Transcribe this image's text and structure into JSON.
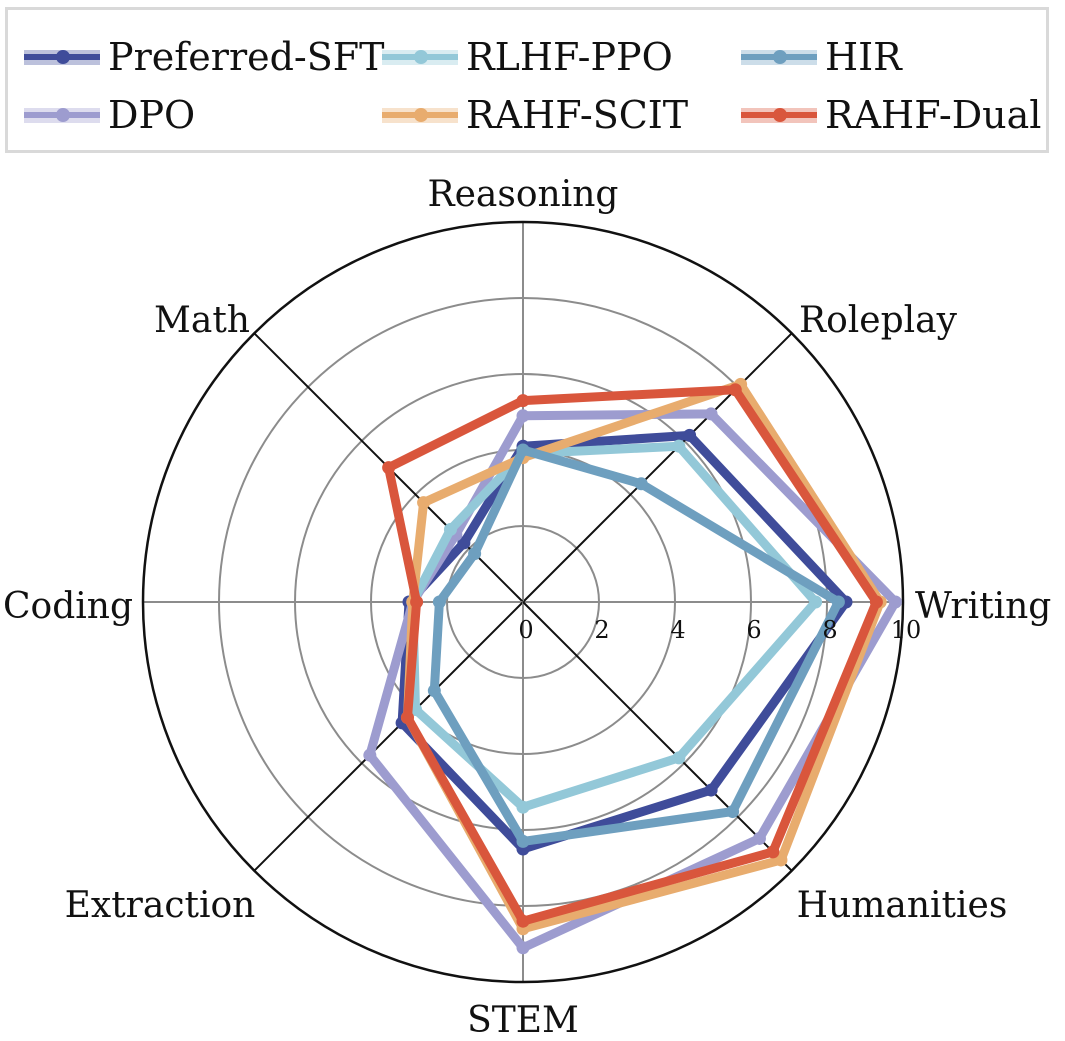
{
  "chart_data": {
    "type": "radar",
    "categories": [
      "Writing",
      "Roleplay",
      "Reasoning",
      "Math",
      "Coding",
      "Extraction",
      "STEM",
      "Humanities"
    ],
    "rticks": [
      "0",
      "2",
      "4",
      "6",
      "8",
      "10"
    ],
    "rlim": [
      0,
      10
    ],
    "grid": true,
    "legend_position": "top",
    "series": [
      {
        "name": "Preferred-SFT",
        "color": "#3f4c9a",
        "values": [
          8.5,
          6.2,
          4.1,
          2.2,
          3.0,
          4.5,
          6.5,
          7.0
        ]
      },
      {
        "name": "DPO",
        "color": "#9d9ccf",
        "values": [
          9.8,
          7.0,
          4.9,
          2.5,
          2.9,
          5.7,
          9.1,
          8.8
        ]
      },
      {
        "name": "RLHF-PPO",
        "color": "#93c8d8",
        "values": [
          7.7,
          5.8,
          3.9,
          2.7,
          2.9,
          4.0,
          5.4,
          5.8
        ]
      },
      {
        "name": "RAHF-SCIT",
        "color": "#e8ac6e",
        "values": [
          9.4,
          8.1,
          3.8,
          3.7,
          2.9,
          4.3,
          8.6,
          9.6
        ]
      },
      {
        "name": "HIR",
        "color": "#6e9fbf",
        "values": [
          8.3,
          4.4,
          4.0,
          1.8,
          2.2,
          3.3,
          6.3,
          7.8
        ]
      },
      {
        "name": "RAHF-Dual",
        "color": "#d9563c",
        "values": [
          9.3,
          7.9,
          5.3,
          5.0,
          2.8,
          4.3,
          8.4,
          9.3
        ]
      }
    ]
  },
  "legend": {
    "items": [
      {
        "label": "Preferred-SFT",
        "color": "#3f4c9a"
      },
      {
        "label": "RLHF-PPO",
        "color": "#93c8d8"
      },
      {
        "label": "HIR",
        "color": "#6e9fbf"
      },
      {
        "label": "DPO",
        "color": "#9d9ccf"
      },
      {
        "label": "RAHF-SCIT",
        "color": "#e8ac6e"
      },
      {
        "label": "RAHF-Dual",
        "color": "#d9563c"
      }
    ]
  }
}
